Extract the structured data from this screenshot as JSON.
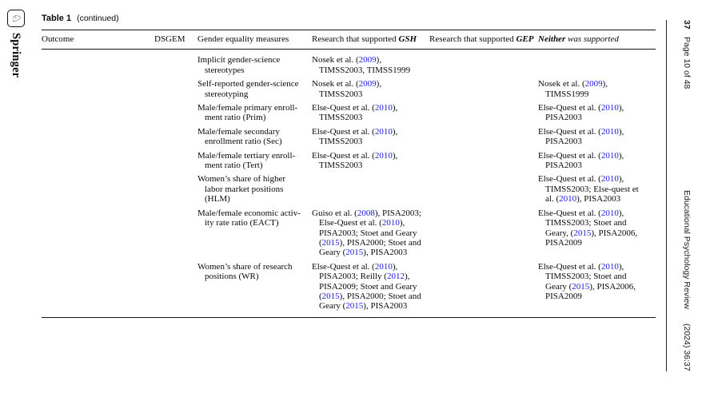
{
  "footer": {
    "publisher": "Springer",
    "logo_glyph": "♘"
  },
  "running_header": {
    "article_number": "37",
    "page_info": "Page 10 of 48",
    "journal": "Educational Psychology Review",
    "volume_info": "(2024) 36:37"
  },
  "colors": {
    "link_blue": "#1b1be0",
    "rule": "#141414",
    "text": "#0a0a0a"
  },
  "table": {
    "caption_label": "Table 1",
    "caption_note": "(continued)",
    "columns": [
      {
        "pre": "Outcome"
      },
      {
        "pre": "DSGEM"
      },
      {
        "pre": "Gender equality measures"
      },
      {
        "pre": "Research that supported ",
        "em": "GSH"
      },
      {
        "pre": "Research that supported ",
        "em": "GEP"
      },
      {
        "em": "Neither",
        "post": " was supported"
      }
    ],
    "rows": [
      {
        "outcome": "",
        "dsgem": "",
        "measure": "Implicit gender-science stereotypes",
        "gsh": "Nosek et al. ([[2009]]), TIMSS2003, TIMSS1999",
        "gep": "",
        "neither": ""
      },
      {
        "outcome": "",
        "dsgem": "",
        "measure": "Self-reported gender-science stereotyping",
        "gsh": "Nosek et al. ([[2009]]), TIMSS2003",
        "gep": "",
        "neither": "Nosek et al. ([[2009]]), TIMSS1999"
      },
      {
        "outcome": "",
        "dsgem": "",
        "measure": "Male/female primary enroll­ment ratio (Prim)",
        "gsh": "Else-Quest et al. ([[2010]]), TIMSS2003",
        "gep": "",
        "neither": "Else-Quest et al. ([[2010]]), PISA2003"
      },
      {
        "outcome": "",
        "dsgem": "",
        "measure": "Male/female secondary enrollment ratio (Sec)",
        "gsh": "Else-Quest et al. ([[2010]]), TIMSS2003",
        "gep": "",
        "neither": "Else-Quest et al. ([[2010]]), PISA2003"
      },
      {
        "outcome": "",
        "dsgem": "",
        "measure": "Male/female tertiary enroll­ment ratio (Tert)",
        "gsh": "Else-Quest et al. ([[2010]]), TIMSS2003",
        "gep": "",
        "neither": "Else-Quest et al. ([[2010]]), PISA2003"
      },
      {
        "outcome": "",
        "dsgem": "",
        "measure": "Women’s share of higher labor market positions (HLM)",
        "gsh": "",
        "gep": "",
        "neither": "Else-Quest et al. ([[2010]]), TIMSS2003; Else-quest et al. ([[2010]]), PISA2003"
      },
      {
        "outcome": "",
        "dsgem": "",
        "measure": "Male/female economic activ­ity rate ratio (EACT)",
        "gsh": "Guiso et al. ([[2008]]), PISA2003; Else-Quest et al. ([[2010]]), PISA2003; Stoet and Geary ([[2015]]), PISA2000; Stoet and Geary ([[2015]]), PISA2003",
        "gep": "",
        "neither": "Else-Quest et al. ([[2010]]), TIMSS2003; Stoet and Geary, ([[2015]]), PISA2006, PISA2009"
      },
      {
        "outcome": "",
        "dsgem": "",
        "measure": "Women’s share of research positions (WR)",
        "gsh": "Else-Quest et al. ([[2010]]), PISA2003; Reilly ([[2012]]), PISA2009; Stoet and Geary ([[2015]]), PISA2000; Stoet and Geary ([[2015]]), PISA2003",
        "gep": "",
        "neither": "Else-Quest et al. ([[2010]]), TIMSS2003; Stoet and Geary ([[2015]]), PISA2006, PISA2009"
      }
    ]
  }
}
